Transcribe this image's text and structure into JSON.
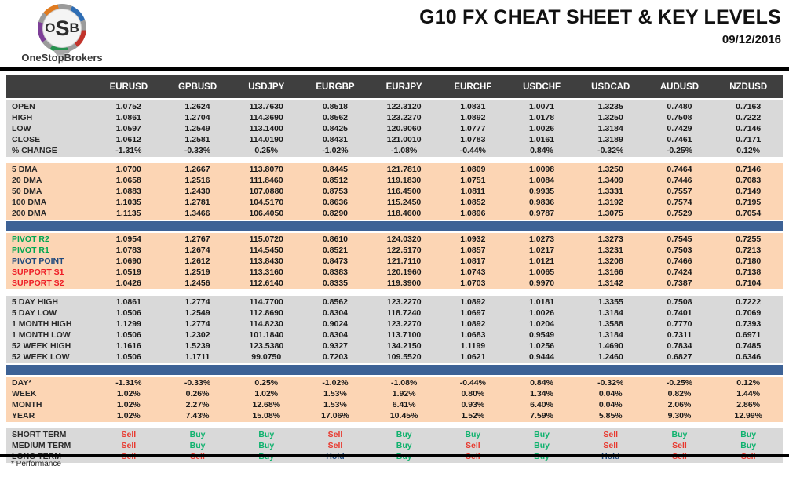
{
  "brand": {
    "initials": "OSB",
    "name": "OneStopBrokers"
  },
  "header": {
    "title": "G10 FX CHEAT SHEET & KEY LEVELS",
    "date": "09/12/2016"
  },
  "colors": {
    "header_bg": "#3f3f3f",
    "header_text": "#ffffff",
    "gray_section_bg": "#d9d9d9",
    "orange_section_bg": "#fcd5b4",
    "divider_blue": "#3d6296",
    "pivot_green": "#00a651",
    "support_red": "#ee1c25",
    "pivot_navy": "#1f497d",
    "signal_buy": "#0fb26e",
    "signal_sell": "#e8392f",
    "signal_hold": "#1f497d"
  },
  "table": {
    "columns": [
      "EURUSD",
      "GPBUSD",
      "USDJPY",
      "EURGBP",
      "EURJPY",
      "EURCHF",
      "USDCHF",
      "USDCAD",
      "AUDUSD",
      "NZDUSD"
    ],
    "sections": [
      {
        "id": "ohlc",
        "bg": "gray",
        "divider_after": "gap",
        "rows": [
          {
            "label": "OPEN",
            "values": [
              "1.0752",
              "1.2624",
              "113.7630",
              "0.8518",
              "122.3120",
              "1.0831",
              "1.0071",
              "1.3235",
              "0.7480",
              "0.7163"
            ]
          },
          {
            "label": "HIGH",
            "values": [
              "1.0861",
              "1.2704",
              "114.3690",
              "0.8562",
              "123.2270",
              "1.0892",
              "1.0178",
              "1.3250",
              "0.7508",
              "0.7222"
            ]
          },
          {
            "label": "LOW",
            "values": [
              "1.0597",
              "1.2549",
              "113.1400",
              "0.8425",
              "120.9060",
              "1.0777",
              "1.0026",
              "1.3184",
              "0.7429",
              "0.7146"
            ]
          },
          {
            "label": "CLOSE",
            "values": [
              "1.0612",
              "1.2581",
              "114.0190",
              "0.8431",
              "121.0010",
              "1.0783",
              "1.0161",
              "1.3189",
              "0.7461",
              "0.7171"
            ]
          },
          {
            "label": "% CHANGE",
            "values": [
              "-1.31%",
              "-0.33%",
              "0.25%",
              "-1.02%",
              "-1.08%",
              "-0.44%",
              "0.84%",
              "-0.32%",
              "-0.25%",
              "0.12%"
            ]
          }
        ]
      },
      {
        "id": "dma",
        "bg": "orange",
        "divider_after": "blue",
        "rows": [
          {
            "label": "5 DMA",
            "values": [
              "1.0700",
              "1.2667",
              "113.8070",
              "0.8445",
              "121.7810",
              "1.0809",
              "1.0098",
              "1.3250",
              "0.7464",
              "0.7146"
            ]
          },
          {
            "label": "20 DMA",
            "values": [
              "1.0658",
              "1.2516",
              "111.8460",
              "0.8512",
              "119.1830",
              "1.0751",
              "1.0084",
              "1.3409",
              "0.7446",
              "0.7083"
            ]
          },
          {
            "label": "50 DMA",
            "values": [
              "1.0883",
              "1.2430",
              "107.0880",
              "0.8753",
              "116.4500",
              "1.0811",
              "0.9935",
              "1.3331",
              "0.7557",
              "0.7149"
            ]
          },
          {
            "label": "100 DMA",
            "values": [
              "1.1035",
              "1.2781",
              "104.5170",
              "0.8636",
              "115.2450",
              "1.0852",
              "0.9836",
              "1.3192",
              "0.7574",
              "0.7195"
            ]
          },
          {
            "label": "200 DMA",
            "values": [
              "1.1135",
              "1.3466",
              "106.4050",
              "0.8290",
              "118.4600",
              "1.0896",
              "0.9787",
              "1.3075",
              "0.7529",
              "0.7054"
            ]
          }
        ]
      },
      {
        "id": "pivots",
        "bg": "orange",
        "divider_after": "gap",
        "rows": [
          {
            "label": "PIVOT R2",
            "label_color": "green",
            "values": [
              "1.0954",
              "1.2767",
              "115.0720",
              "0.8610",
              "124.0320",
              "1.0932",
              "1.0273",
              "1.3273",
              "0.7545",
              "0.7255"
            ]
          },
          {
            "label": "PIVOT R1",
            "label_color": "green",
            "values": [
              "1.0783",
              "1.2674",
              "114.5450",
              "0.8521",
              "122.5170",
              "1.0857",
              "1.0217",
              "1.3231",
              "0.7503",
              "0.7213"
            ]
          },
          {
            "label": "PIVOT POINT",
            "label_color": "navy",
            "values": [
              "1.0690",
              "1.2612",
              "113.8430",
              "0.8473",
              "121.7110",
              "1.0817",
              "1.0121",
              "1.3208",
              "0.7466",
              "0.7180"
            ]
          },
          {
            "label": "SUPPORT S1",
            "label_color": "red",
            "values": [
              "1.0519",
              "1.2519",
              "113.3160",
              "0.8383",
              "120.1960",
              "1.0743",
              "1.0065",
              "1.3166",
              "0.7424",
              "0.7138"
            ]
          },
          {
            "label": "SUPPORT S2",
            "label_color": "red",
            "values": [
              "1.0426",
              "1.2456",
              "112.6140",
              "0.8335",
              "119.3900",
              "1.0703",
              "0.9970",
              "1.3142",
              "0.7387",
              "0.7104"
            ]
          }
        ]
      },
      {
        "id": "ranges",
        "bg": "gray",
        "divider_after": "blue",
        "rows": [
          {
            "label": "5 DAY HIGH",
            "values": [
              "1.0861",
              "1.2774",
              "114.7700",
              "0.8562",
              "123.2270",
              "1.0892",
              "1.0181",
              "1.3355",
              "0.7508",
              "0.7222"
            ]
          },
          {
            "label": "5 DAY LOW",
            "values": [
              "1.0506",
              "1.2549",
              "112.8690",
              "0.8304",
              "118.7240",
              "1.0697",
              "1.0026",
              "1.3184",
              "0.7401",
              "0.7069"
            ]
          },
          {
            "label": "1 MONTH HIGH",
            "values": [
              "1.1299",
              "1.2774",
              "114.8230",
              "0.9024",
              "123.2270",
              "1.0892",
              "1.0204",
              "1.3588",
              "0.7770",
              "0.7393"
            ]
          },
          {
            "label": "1 MONTH LOW",
            "values": [
              "1.0506",
              "1.2302",
              "101.1840",
              "0.8304",
              "113.7100",
              "1.0683",
              "0.9549",
              "1.3184",
              "0.7311",
              "0.6971"
            ]
          },
          {
            "label": "52 WEEK HIGH",
            "values": [
              "1.1616",
              "1.5239",
              "123.5380",
              "0.9327",
              "134.2150",
              "1.1199",
              "1.0256",
              "1.4690",
              "0.7834",
              "0.7485"
            ]
          },
          {
            "label": "52 WEEK LOW",
            "values": [
              "1.0506",
              "1.1711",
              "99.0750",
              "0.7203",
              "109.5520",
              "1.0621",
              "0.9444",
              "1.2460",
              "0.6827",
              "0.6346"
            ]
          }
        ]
      },
      {
        "id": "performance",
        "bg": "orange",
        "divider_after": "gap",
        "rows": [
          {
            "label": "DAY*",
            "values": [
              "-1.31%",
              "-0.33%",
              "0.25%",
              "-1.02%",
              "-1.08%",
              "-0.44%",
              "0.84%",
              "-0.32%",
              "-0.25%",
              "0.12%"
            ]
          },
          {
            "label": "WEEK",
            "values": [
              "1.02%",
              "0.26%",
              "1.02%",
              "1.53%",
              "1.92%",
              "0.80%",
              "1.34%",
              "0.04%",
              "0.82%",
              "1.44%"
            ]
          },
          {
            "label": "MONTH",
            "values": [
              "1.02%",
              "2.27%",
              "12.68%",
              "1.53%",
              "6.41%",
              "0.93%",
              "6.40%",
              "0.04%",
              "2.06%",
              "2.86%"
            ]
          },
          {
            "label": "YEAR",
            "values": [
              "1.02%",
              "7.43%",
              "15.08%",
              "17.06%",
              "10.45%",
              "1.52%",
              "7.59%",
              "5.85%",
              "9.30%",
              "12.99%"
            ]
          }
        ]
      },
      {
        "id": "signals",
        "bg": "gray",
        "divider_after": "none",
        "rows": [
          {
            "label": "SHORT TERM",
            "values": [
              "Sell",
              "Buy",
              "Buy",
              "Sell",
              "Buy",
              "Buy",
              "Buy",
              "Sell",
              "Buy",
              "Buy"
            ]
          },
          {
            "label": "MEDIUM TERM",
            "values": [
              "Sell",
              "Buy",
              "Buy",
              "Sell",
              "Buy",
              "Sell",
              "Buy",
              "Sell",
              "Sell",
              "Buy"
            ]
          },
          {
            "label": "LONG TERM",
            "values": [
              "Sell",
              "Sell",
              "Buy",
              "Hold",
              "Buy",
              "Sell",
              "Buy",
              "Hold",
              "Sell",
              "Sell"
            ]
          }
        ]
      }
    ]
  },
  "footer": {
    "note": "* Performance"
  }
}
